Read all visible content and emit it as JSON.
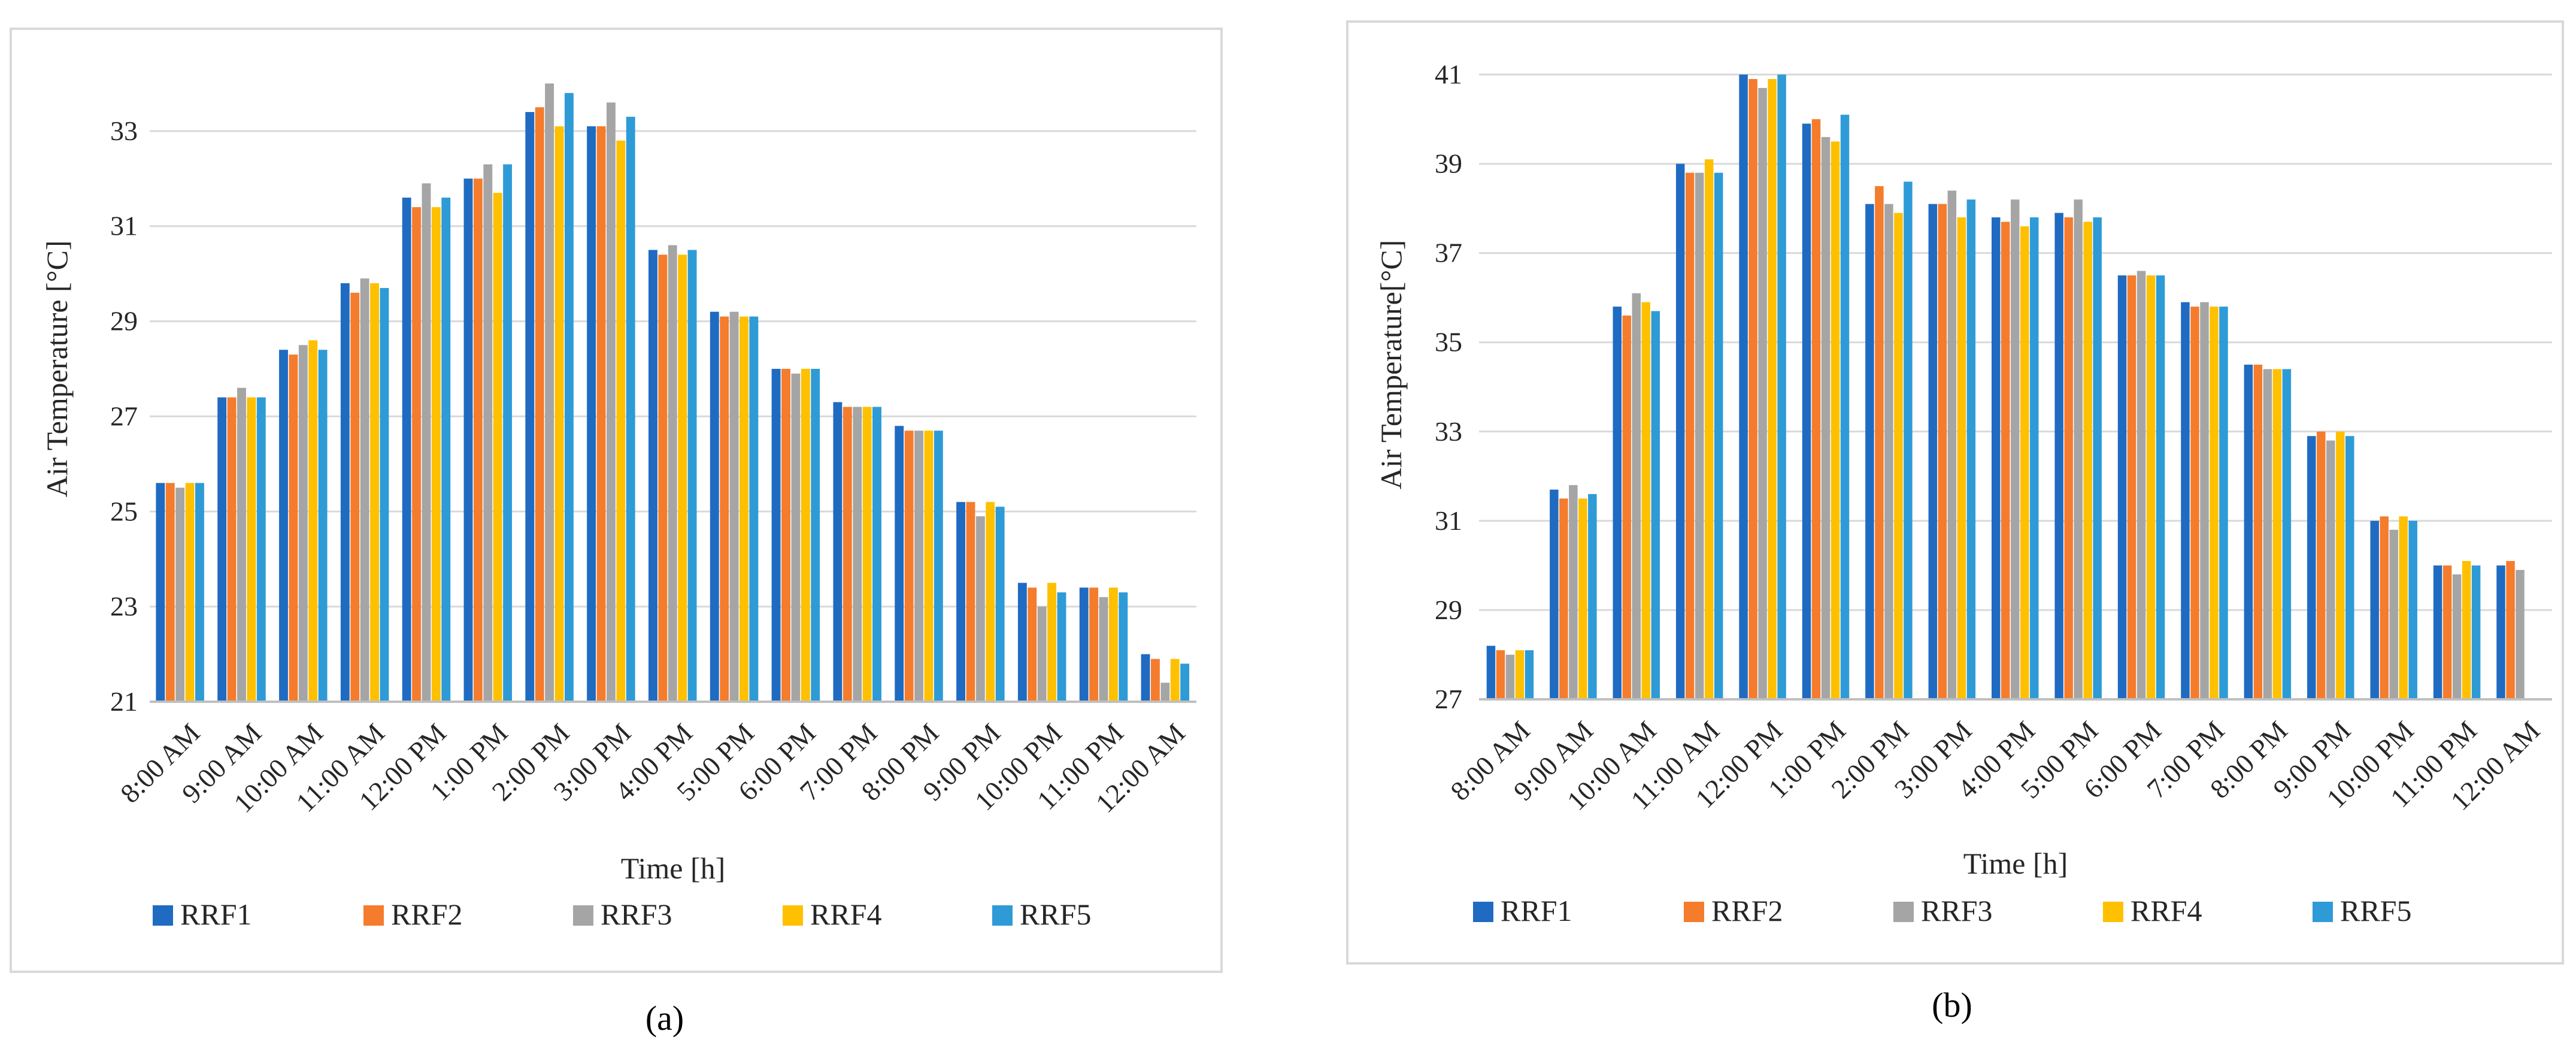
{
  "colors": {
    "series": [
      "#1F6BC2",
      "#F57C2C",
      "#A5A5A5",
      "#FFC000",
      "#2E9BD7"
    ],
    "grid": "#D9D9D9",
    "axis": "#BFBFBF",
    "frame": "#D9D9D9",
    "text": "#262626"
  },
  "legend_labels": [
    "RRF1",
    "RRF2",
    "RRF3",
    "RRF4",
    "RRF5"
  ],
  "chart_data": [
    {
      "type": "bar",
      "panel_label": "(a)",
      "xlabel": "Time [h]",
      "ylabel": "Air Temperature [°C]",
      "ylim": [
        21,
        35
      ],
      "yticks": [
        21,
        23,
        25,
        27,
        29,
        31,
        33
      ],
      "categories": [
        "8:00 AM",
        "9:00 AM",
        "10:00 AM",
        "11:00 AM",
        "12:00 PM",
        "1:00 PM",
        "2:00 PM",
        "3:00 PM",
        "4:00 PM",
        "5:00 PM",
        "6:00 PM",
        "7:00 PM",
        "8:00 PM",
        "9:00 PM",
        "10:00 PM",
        "11:00 PM",
        "12:00 AM"
      ],
      "series": [
        {
          "name": "RRF1",
          "values": [
            25.6,
            27.4,
            28.4,
            29.8,
            31.6,
            32.0,
            33.4,
            33.1,
            30.5,
            29.2,
            28.0,
            27.3,
            26.8,
            25.2,
            23.5,
            23.4,
            22.0
          ]
        },
        {
          "name": "RRF2",
          "values": [
            25.6,
            27.4,
            28.3,
            29.6,
            31.4,
            32.0,
            33.5,
            33.1,
            30.4,
            29.1,
            28.0,
            27.2,
            26.7,
            25.2,
            23.4,
            23.4,
            21.9
          ]
        },
        {
          "name": "RRF3",
          "values": [
            25.5,
            27.6,
            28.5,
            29.9,
            31.9,
            32.3,
            34.0,
            33.6,
            30.6,
            29.2,
            27.9,
            27.2,
            26.7,
            24.9,
            23.0,
            23.2,
            21.4
          ]
        },
        {
          "name": "RRF4",
          "values": [
            25.6,
            27.4,
            28.6,
            29.8,
            31.4,
            31.7,
            33.1,
            32.8,
            30.4,
            29.1,
            28.0,
            27.2,
            26.7,
            25.2,
            23.5,
            23.4,
            21.9
          ]
        },
        {
          "name": "RRF5",
          "values": [
            25.6,
            27.4,
            28.4,
            29.7,
            31.6,
            32.3,
            33.8,
            33.3,
            30.5,
            29.1,
            28.0,
            27.2,
            26.7,
            25.1,
            23.3,
            23.3,
            21.8
          ]
        }
      ]
    },
    {
      "type": "bar",
      "panel_label": "(b)",
      "xlabel": "Time [h]",
      "ylabel": "Air Temperature[°C]",
      "ylim": [
        27,
        42
      ],
      "yticks": [
        27,
        29,
        31,
        33,
        35,
        37,
        39,
        41
      ],
      "categories": [
        "8:00 AM",
        "9:00 AM",
        "10:00 AM",
        "11:00 AM",
        "12:00 PM",
        "1:00 PM",
        "2:00 PM",
        "3:00 PM",
        "4:00 PM",
        "5:00 PM",
        "6:00 PM",
        "7:00 PM",
        "8:00 PM",
        "9:00 PM",
        "10:00 PM",
        "11:00 PM",
        "12:00 AM"
      ],
      "series": [
        {
          "name": "RRF1",
          "values": [
            28.2,
            31.7,
            35.8,
            39.0,
            41.0,
            39.9,
            38.1,
            38.1,
            37.8,
            37.9,
            36.5,
            35.9,
            34.5,
            32.9,
            31.0,
            30.0,
            30.0
          ]
        },
        {
          "name": "RRF2",
          "values": [
            28.1,
            31.5,
            35.6,
            38.8,
            40.9,
            40.0,
            38.5,
            38.1,
            37.7,
            37.8,
            36.5,
            35.8,
            34.5,
            33.0,
            31.1,
            30.0,
            30.1
          ]
        },
        {
          "name": "RRF3",
          "values": [
            28.0,
            31.8,
            36.1,
            38.8,
            40.7,
            39.6,
            38.1,
            38.4,
            38.2,
            38.2,
            36.6,
            35.9,
            34.4,
            32.8,
            30.8,
            29.8,
            29.9
          ]
        },
        {
          "name": "RRF4",
          "values": [
            28.1,
            31.5,
            35.9,
            39.1,
            40.9,
            39.5,
            37.9,
            37.8,
            37.6,
            37.7,
            36.5,
            35.8,
            34.4,
            33.0,
            31.1,
            30.1,
            null
          ]
        },
        {
          "name": "RRF5",
          "values": [
            28.1,
            31.6,
            35.7,
            38.8,
            41.0,
            40.1,
            38.6,
            38.2,
            37.8,
            37.8,
            36.5,
            35.8,
            34.4,
            32.9,
            31.0,
            30.0,
            null
          ]
        }
      ]
    }
  ]
}
